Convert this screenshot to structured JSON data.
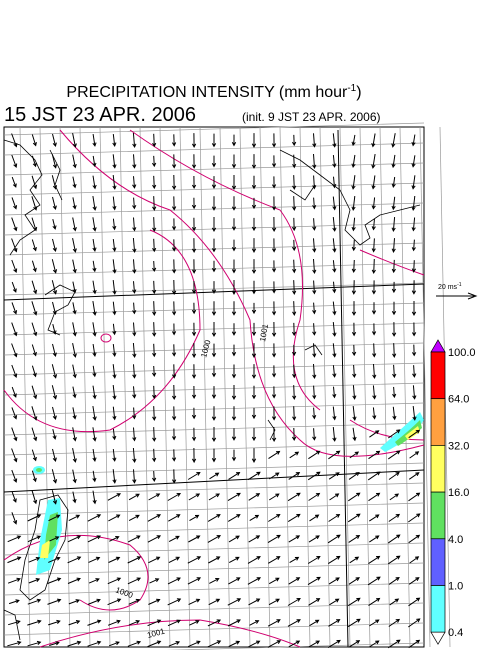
{
  "header": {
    "title": "PRECIPITATION INTENSITY (mm hour",
    "title_superscript": "-1",
    "title_close": ")",
    "valid_time": "15 JST 23 APR. 2006",
    "init_time": "(init. 9 JST 23 APR. 2006)"
  },
  "wind_scale": {
    "label": "20 ms",
    "superscript": "-1"
  },
  "colorbar": {
    "labels": [
      "100.0",
      "64.0",
      "32.0",
      "16.0",
      "4.0",
      "1.0",
      "0.4"
    ],
    "colors": [
      "#ff0000",
      "#ffa040",
      "#ffff60",
      "#60e060",
      "#6060ff",
      "#60ffff"
    ],
    "over_color": "#c000ff",
    "under_color": "#ffffff"
  },
  "contour_labels": [
    "1001",
    "1000",
    "1000",
    "1001"
  ]
}
